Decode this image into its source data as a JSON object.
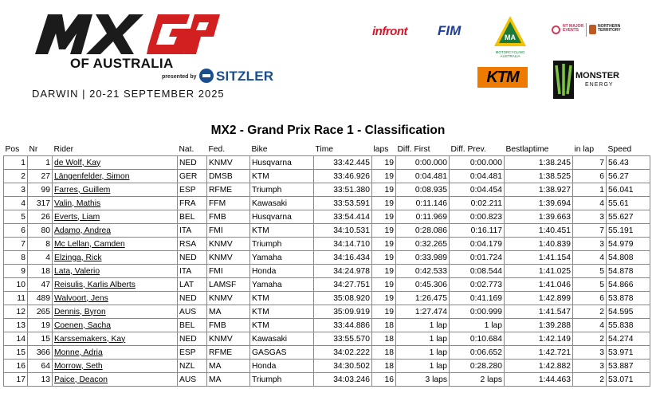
{
  "header": {
    "logo_text": "MXGP",
    "event_title": "OF AUSTRALIA",
    "presented_by": "presented by",
    "presenter": "SITZLER",
    "dates": "DARWIN | 20-21 SEPTEMBER 2025"
  },
  "sponsors": {
    "infront": "infront",
    "fim": "FIM",
    "motorcycling_australia": "MOTORCYCLING AUSTRALIA",
    "ma": "MA",
    "major_events": "NT MAJOR EVENTS",
    "northern_territory": "NORTHERN TERRITORY",
    "ktm": "KTM",
    "monster": "MONSTER",
    "monster_sub": "ENERGY"
  },
  "title": "MX2 - Grand Prix Race 1 - Classification",
  "columns": [
    "Pos",
    "Nr",
    "Rider",
    "Nat.",
    "Fed.",
    "Bike",
    "Time",
    "laps",
    "Diff. First",
    "Diff. Prev.",
    "Bestlaptime",
    "in lap",
    "Speed"
  ],
  "rows": [
    {
      "pos": "1",
      "nr": "1",
      "rider": "de Wolf, Kay",
      "nat": "NED",
      "fed": "KNMV",
      "bike": "Husqvarna",
      "time": "33:42.445",
      "laps": "19",
      "diff_first": "0:00.000",
      "diff_prev": "0:00.000",
      "best": "1:38.245",
      "in_lap": "7",
      "speed": "56.43"
    },
    {
      "pos": "2",
      "nr": "27",
      "rider": "Längenfelder, Simon",
      "nat": "GER",
      "fed": "DMSB",
      "bike": "KTM",
      "time": "33:46.926",
      "laps": "19",
      "diff_first": "0:04.481",
      "diff_prev": "0:04.481",
      "best": "1:38.525",
      "in_lap": "6",
      "speed": "56.27"
    },
    {
      "pos": "3",
      "nr": "99",
      "rider": "Farres, Guillem",
      "nat": "ESP",
      "fed": "RFME",
      "bike": "Triumph",
      "time": "33:51.380",
      "laps": "19",
      "diff_first": "0:08.935",
      "diff_prev": "0:04.454",
      "best": "1:38.927",
      "in_lap": "1",
      "speed": "56.041"
    },
    {
      "pos": "4",
      "nr": "317",
      "rider": "Valin, Mathis",
      "nat": "FRA",
      "fed": "FFM",
      "bike": "Kawasaki",
      "time": "33:53.591",
      "laps": "19",
      "diff_first": "0:11.146",
      "diff_prev": "0:02.211",
      "best": "1:39.694",
      "in_lap": "4",
      "speed": "55.61"
    },
    {
      "pos": "5",
      "nr": "26",
      "rider": "Everts, Liam",
      "nat": "BEL",
      "fed": "FMB",
      "bike": "Husqvarna",
      "time": "33:54.414",
      "laps": "19",
      "diff_first": "0:11.969",
      "diff_prev": "0:00.823",
      "best": "1:39.663",
      "in_lap": "3",
      "speed": "55.627"
    },
    {
      "pos": "6",
      "nr": "80",
      "rider": "Adamo, Andrea",
      "nat": "ITA",
      "fed": "FMI",
      "bike": "KTM",
      "time": "34:10.531",
      "laps": "19",
      "diff_first": "0:28.086",
      "diff_prev": "0:16.117",
      "best": "1:40.451",
      "in_lap": "7",
      "speed": "55.191"
    },
    {
      "pos": "7",
      "nr": "8",
      "rider": "Mc Lellan, Camden",
      "nat": "RSA",
      "fed": "KNMV",
      "bike": "Triumph",
      "time": "34:14.710",
      "laps": "19",
      "diff_first": "0:32.265",
      "diff_prev": "0:04.179",
      "best": "1:40.839",
      "in_lap": "3",
      "speed": "54.979"
    },
    {
      "pos": "8",
      "nr": "4",
      "rider": "Elzinga, Rick",
      "nat": "NED",
      "fed": "KNMV",
      "bike": "Yamaha",
      "time": "34:16.434",
      "laps": "19",
      "diff_first": "0:33.989",
      "diff_prev": "0:01.724",
      "best": "1:41.154",
      "in_lap": "4",
      "speed": "54.808"
    },
    {
      "pos": "9",
      "nr": "18",
      "rider": "Lata, Valerio",
      "nat": "ITA",
      "fed": "FMI",
      "bike": "Honda",
      "time": "34:24.978",
      "laps": "19",
      "diff_first": "0:42.533",
      "diff_prev": "0:08.544",
      "best": "1:41.025",
      "in_lap": "5",
      "speed": "54.878"
    },
    {
      "pos": "10",
      "nr": "47",
      "rider": "Reisulis, Karlis Alberts",
      "nat": "LAT",
      "fed": "LAMSF",
      "bike": "Yamaha",
      "time": "34:27.751",
      "laps": "19",
      "diff_first": "0:45.306",
      "diff_prev": "0:02.773",
      "best": "1:41.046",
      "in_lap": "5",
      "speed": "54.866"
    },
    {
      "pos": "11",
      "nr": "489",
      "rider": "Walvoort, Jens",
      "nat": "NED",
      "fed": "KNMV",
      "bike": "KTM",
      "time": "35:08.920",
      "laps": "19",
      "diff_first": "1:26.475",
      "diff_prev": "0:41.169",
      "best": "1:42.899",
      "in_lap": "6",
      "speed": "53.878"
    },
    {
      "pos": "12",
      "nr": "265",
      "rider": "Dennis, Byron",
      "nat": "AUS",
      "fed": "MA",
      "bike": "KTM",
      "time": "35:09.919",
      "laps": "19",
      "diff_first": "1:27.474",
      "diff_prev": "0:00.999",
      "best": "1:41.547",
      "in_lap": "2",
      "speed": "54.595"
    },
    {
      "pos": "13",
      "nr": "19",
      "rider": "Coenen, Sacha",
      "nat": "BEL",
      "fed": "FMB",
      "bike": "KTM",
      "time": "33:44.886",
      "laps": "18",
      "diff_first": "1 lap",
      "diff_prev": "1 lap",
      "best": "1:39.288",
      "in_lap": "4",
      "speed": "55.838"
    },
    {
      "pos": "14",
      "nr": "15",
      "rider": "Karssemakers, Kay",
      "nat": "NED",
      "fed": "KNMV",
      "bike": "Kawasaki",
      "time": "33:55.570",
      "laps": "18",
      "diff_first": "1 lap",
      "diff_prev": "0:10.684",
      "best": "1:42.149",
      "in_lap": "2",
      "speed": "54.274"
    },
    {
      "pos": "15",
      "nr": "366",
      "rider": "Monne, Adria",
      "nat": "ESP",
      "fed": "RFME",
      "bike": "GASGAS",
      "time": "34:02.222",
      "laps": "18",
      "diff_first": "1 lap",
      "diff_prev": "0:06.652",
      "best": "1:42.721",
      "in_lap": "3",
      "speed": "53.971"
    },
    {
      "pos": "16",
      "nr": "64",
      "rider": "Morrow, Seth",
      "nat": "NZL",
      "fed": "MA",
      "bike": "Honda",
      "time": "34:30.502",
      "laps": "18",
      "diff_first": "1 lap",
      "diff_prev": "0:28.280",
      "best": "1:42.882",
      "in_lap": "3",
      "speed": "53.887"
    },
    {
      "pos": "17",
      "nr": "13",
      "rider": "Paice, Deacon",
      "nat": "AUS",
      "fed": "MA",
      "bike": "Triumph",
      "time": "34:03.246",
      "laps": "16",
      "diff_first": "3 laps",
      "diff_prev": "2 laps",
      "best": "1:44.463",
      "in_lap": "2",
      "speed": "53.071"
    }
  ],
  "colors": {
    "mxgp_red": "#d21f1f",
    "mxgp_dark": "#1b1b1b",
    "ktm_orange": "#ef7a00",
    "monster_green": "#7dc242",
    "sitzler_blue": "#1a4e8c"
  }
}
